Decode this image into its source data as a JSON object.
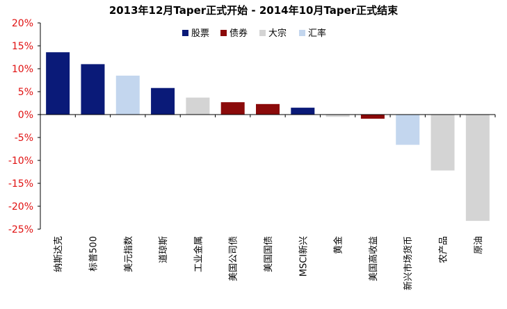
{
  "chart_data": {
    "type": "bar",
    "title": "2013年12月Taper正式开始 - 2014年10月Taper正式结束",
    "categories": [
      "纳斯达克",
      "标普500",
      "美元指数",
      "道琼斯",
      "工业金属",
      "美国公司债",
      "美国国债",
      "MSCI新兴",
      "黄金",
      "美国高收益",
      "新兴市场货币",
      "农产品",
      "原油"
    ],
    "values": [
      13.6,
      11.0,
      8.5,
      5.8,
      3.7,
      2.7,
      2.3,
      1.5,
      -0.5,
      -0.9,
      -6.6,
      -12.2,
      -23.2
    ],
    "groups": [
      "股票",
      "股票",
      "汇率",
      "股票",
      "大宗",
      "债券",
      "债券",
      "股票",
      "大宗",
      "债券",
      "汇率",
      "大宗",
      "大宗"
    ],
    "legend": [
      {
        "name": "股票",
        "color": "#0a1a78"
      },
      {
        "name": "债券",
        "color": "#8b0a0a"
      },
      {
        "name": "大宗",
        "color": "#d4d4d4"
      },
      {
        "name": "汇率",
        "color": "#c3d6ee"
      }
    ],
    "legend_position": "top-center",
    "ylim": [
      -25,
      20
    ],
    "yticks": [
      -25,
      -20,
      -15,
      -10,
      -5,
      0,
      5,
      10,
      15,
      20
    ],
    "ytick_labels": [
      "-25%",
      "-20%",
      "-15%",
      "-10%",
      "-5%",
      "0%",
      "5%",
      "10%",
      "15%",
      "20%"
    ],
    "xlabel": "",
    "ylabel": "",
    "grid": false
  }
}
